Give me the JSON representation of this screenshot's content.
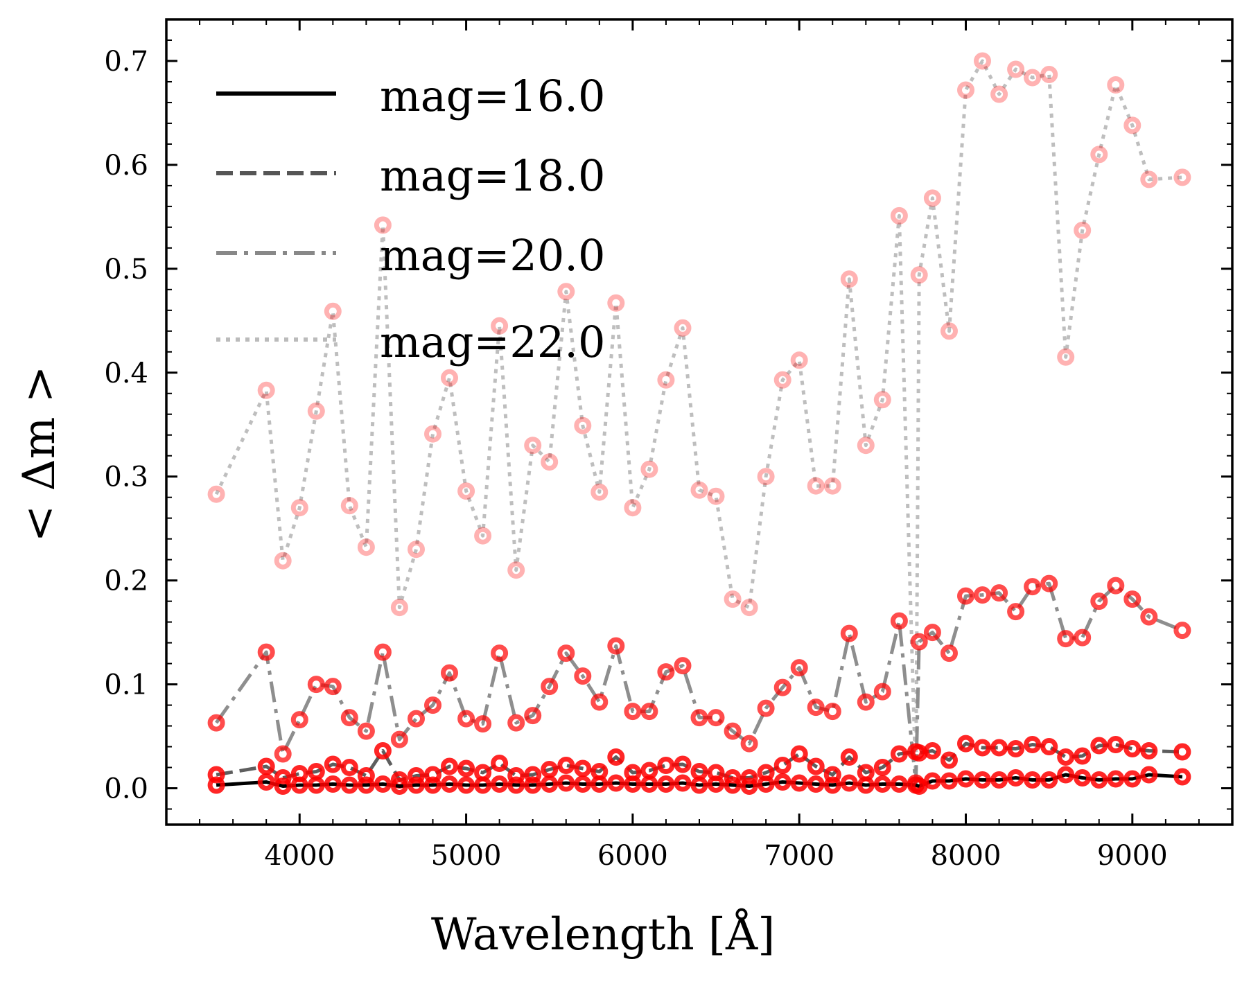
{
  "chart_data": {
    "type": "line",
    "title": "",
    "xlabel": "Wavelength [Å]",
    "ylabel": "< Δm >",
    "xlim": [
      3200,
      9600
    ],
    "ylim": [
      -0.035,
      0.74
    ],
    "xticks": [
      4000,
      5000,
      6000,
      7000,
      8000,
      9000
    ],
    "xtick_labels": [
      "4000",
      "5000",
      "6000",
      "7000",
      "8000",
      "9000"
    ],
    "yticks": [
      0.0,
      0.1,
      0.2,
      0.3,
      0.4,
      0.5,
      0.6,
      0.7
    ],
    "ytick_labels": [
      "0.0",
      "0.1",
      "0.2",
      "0.3",
      "0.4",
      "0.5",
      "0.6",
      "0.7"
    ],
    "legend_position": "top-left",
    "marker_color": "#ff0000",
    "x": [
      3500,
      3800,
      3900,
      4000,
      4100,
      4200,
      4300,
      4400,
      4500,
      4600,
      4700,
      4800,
      4900,
      5000,
      5100,
      5200,
      5300,
      5400,
      5500,
      5600,
      5700,
      5800,
      5900,
      6000,
      6100,
      6200,
      6300,
      6400,
      6500,
      6600,
      6700,
      6800,
      6900,
      7000,
      7100,
      7200,
      7300,
      7400,
      7500,
      7600,
      7700,
      7720,
      7800,
      7900,
      8000,
      8100,
      8200,
      8300,
      8400,
      8500,
      8600,
      8700,
      8800,
      8900,
      9000,
      9100,
      9300
    ],
    "series": [
      {
        "name": "mag=16.0",
        "line_style": "solid",
        "color": "#000000",
        "values": [
          0.003,
          0.006,
          0.002,
          0.003,
          0.003,
          0.004,
          0.003,
          0.003,
          0.004,
          0.002,
          0.003,
          0.003,
          0.004,
          0.003,
          0.003,
          0.004,
          0.003,
          0.003,
          0.004,
          0.005,
          0.004,
          0.004,
          0.005,
          0.004,
          0.004,
          0.004,
          0.005,
          0.003,
          0.004,
          0.003,
          0.002,
          0.004,
          0.006,
          0.005,
          0.004,
          0.003,
          0.005,
          0.003,
          0.004,
          0.004,
          0.003,
          0.002,
          0.007,
          0.007,
          0.009,
          0.008,
          0.008,
          0.01,
          0.008,
          0.008,
          0.013,
          0.01,
          0.008,
          0.009,
          0.009,
          0.013,
          0.011
        ]
      },
      {
        "name": "mag=18.0",
        "line_style": "dashed",
        "color": "#555555",
        "values": [
          0.013,
          0.021,
          0.01,
          0.014,
          0.016,
          0.023,
          0.02,
          0.012,
          0.036,
          0.008,
          0.012,
          0.013,
          0.021,
          0.019,
          0.015,
          0.024,
          0.012,
          0.013,
          0.018,
          0.022,
          0.019,
          0.016,
          0.03,
          0.015,
          0.017,
          0.022,
          0.023,
          0.016,
          0.015,
          0.01,
          0.01,
          0.015,
          0.022,
          0.033,
          0.021,
          0.013,
          0.03,
          0.015,
          0.02,
          0.033,
          0.035,
          0.034,
          0.036,
          0.027,
          0.043,
          0.039,
          0.039,
          0.038,
          0.042,
          0.04,
          0.03,
          0.031,
          0.041,
          0.042,
          0.038,
          0.036,
          0.035
        ]
      },
      {
        "name": "mag=20.0",
        "line_style": "dashdot",
        "color": "#888888",
        "values": [
          0.063,
          0.131,
          0.033,
          0.066,
          0.1,
          0.098,
          0.068,
          0.055,
          0.131,
          0.047,
          0.067,
          0.08,
          0.111,
          0.067,
          0.062,
          0.13,
          0.063,
          0.07,
          0.098,
          0.13,
          0.108,
          0.083,
          0.137,
          0.074,
          0.074,
          0.112,
          0.118,
          0.068,
          0.068,
          0.055,
          0.043,
          0.077,
          0.097,
          0.116,
          0.078,
          0.074,
          0.149,
          0.083,
          0.093,
          0.161,
          0.005,
          0.141,
          0.15,
          0.13,
          0.185,
          0.186,
          0.188,
          0.17,
          0.194,
          0.197,
          0.144,
          0.145,
          0.18,
          0.195,
          0.182,
          0.165,
          0.152
        ]
      },
      {
        "name": "mag=22.0",
        "line_style": "dotted",
        "color": "#bbbbbb",
        "values": [
          0.283,
          0.383,
          0.219,
          0.27,
          0.363,
          0.459,
          0.272,
          0.232,
          0.542,
          0.174,
          0.23,
          0.341,
          0.395,
          0.286,
          0.243,
          0.445,
          0.21,
          0.33,
          0.314,
          0.478,
          0.349,
          0.285,
          0.467,
          0.27,
          0.307,
          0.393,
          0.443,
          0.287,
          0.281,
          0.182,
          0.174,
          0.3,
          0.393,
          0.412,
          0.291,
          0.291,
          0.49,
          0.33,
          0.374,
          0.551,
          0.005,
          0.494,
          0.568,
          0.44,
          0.672,
          0.7,
          0.668,
          0.692,
          0.684,
          0.687,
          0.415,
          0.537,
          0.61,
          0.677,
          0.638,
          0.586,
          0.588
        ]
      }
    ]
  }
}
